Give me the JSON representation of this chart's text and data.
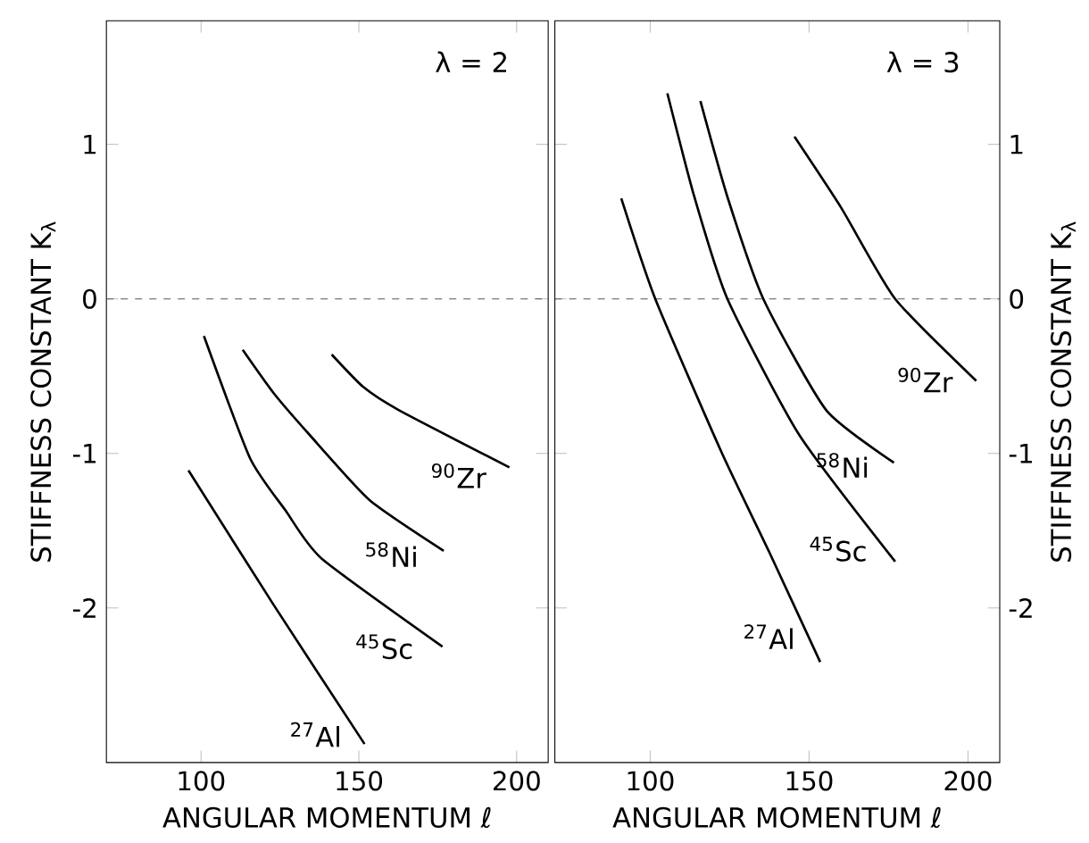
{
  "chart_data": [
    {
      "type": "line",
      "title": "λ = 2",
      "xlabel": "ANGULAR MOMENTUM ℓ",
      "ylabel": "STIFFNESS CONSTANT K$_{λ}$",
      "xlim": [
        70,
        210
      ],
      "ylim": [
        -3,
        1.8
      ],
      "xticks": [
        100,
        150,
        200
      ],
      "yticks": [
        -2,
        -1,
        0,
        1
      ],
      "marker": "none",
      "line_style": "solid",
      "legend": false,
      "grid": false,
      "ref_lines": [
        {
          "axis": "y",
          "value": 0,
          "line_style": "dashed",
          "color": "#555555"
        }
      ],
      "series": [
        {
          "name": "$^{27}$Al",
          "color": "#000000",
          "x": [
            96.0,
            123.0,
            151.8
          ],
          "values": [
            -1.11,
            -1.98,
            -2.88
          ]
        },
        {
          "name": "$^{45}$Sc",
          "color": "#000000",
          "x": [
            100.9,
            115.5,
            126.8,
            138.2,
            176.5
          ],
          "values": [
            -0.24,
            -1.03,
            -1.37,
            -1.68,
            -2.25
          ]
        },
        {
          "name": "$^{58}$Ni",
          "color": "#000000",
          "x": [
            113.2,
            123.0,
            134.4,
            153.3,
            176.9
          ],
          "values": [
            -0.33,
            -0.61,
            -0.88,
            -1.3,
            -1.63
          ]
        },
        {
          "name": "$^{90}$Zr",
          "color": "#000000",
          "x": [
            141.4,
            151.4,
            162.7,
            197.7
          ],
          "values": [
            -0.36,
            -0.57,
            -0.72,
            -1.09
          ]
        }
      ]
    },
    {
      "type": "line",
      "title": "λ = 3",
      "xlabel": "ANGULAR MOMENTUM ℓ",
      "ylabel": "STIFFNESS CONSTANT K$_{λ}$",
      "xlim": [
        70,
        210
      ],
      "ylim": [
        -3,
        1.8
      ],
      "xticks": [
        100,
        150,
        200
      ],
      "yticks": [
        -2,
        -1,
        0,
        1
      ],
      "marker": "none",
      "line_style": "solid",
      "legend": false,
      "grid": false,
      "ref_lines": [
        {
          "axis": "y",
          "value": 0,
          "line_style": "dashed",
          "color": "#555555"
        }
      ],
      "series": [
        {
          "name": "$^{27}$Al",
          "color": "#000000",
          "x": [
            90.9,
            101.6,
            122.4,
            137.5,
            153.5
          ],
          "values": [
            0.65,
            0.0,
            -0.99,
            -1.64,
            -2.35
          ]
        },
        {
          "name": "$^{45}$Sc",
          "color": "#000000",
          "x": [
            105.4,
            113.9,
            124.3,
            146.9,
            177.1
          ],
          "values": [
            1.33,
            0.66,
            0.0,
            -0.88,
            -1.7
          ]
        },
        {
          "name": "$^{58}$Ni",
          "color": "#000000",
          "x": [
            115.8,
            124.3,
            135.6,
            155.4,
            176.7
          ],
          "values": [
            1.28,
            0.66,
            0.0,
            -0.72,
            -1.06
          ]
        },
        {
          "name": "$^{90}$Zr",
          "color": "#000000",
          "x": [
            145.4,
            160.1,
            177.1,
            202.6
          ],
          "values": [
            1.05,
            0.59,
            0.0,
            -0.53
          ]
        }
      ]
    }
  ]
}
